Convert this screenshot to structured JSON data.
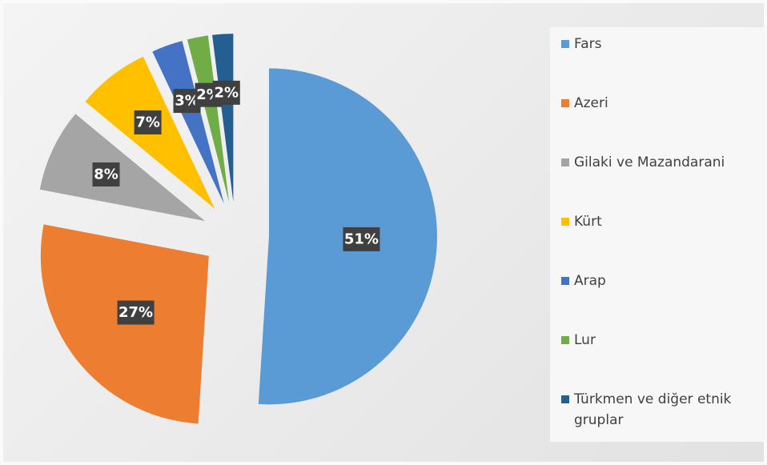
{
  "chart_data": {
    "type": "pie",
    "categories": [
      "Fars",
      "Azeri",
      "Gilaki ve Mazandarani",
      "Kürt",
      "Arap",
      "Lur",
      "Türkmen ve diğer etnik gruplar"
    ],
    "values": [
      51,
      27,
      8,
      7,
      3,
      2,
      2
    ],
    "value_labels": [
      "51%",
      "27%",
      "8%",
      "7%",
      "3%",
      "2%",
      "2%"
    ],
    "colors": [
      "#5b9bd5",
      "#ed7d31",
      "#a5a5a5",
      "#ffc000",
      "#4472c4",
      "#70ad47",
      "#255e91"
    ],
    "legend": "right"
  }
}
